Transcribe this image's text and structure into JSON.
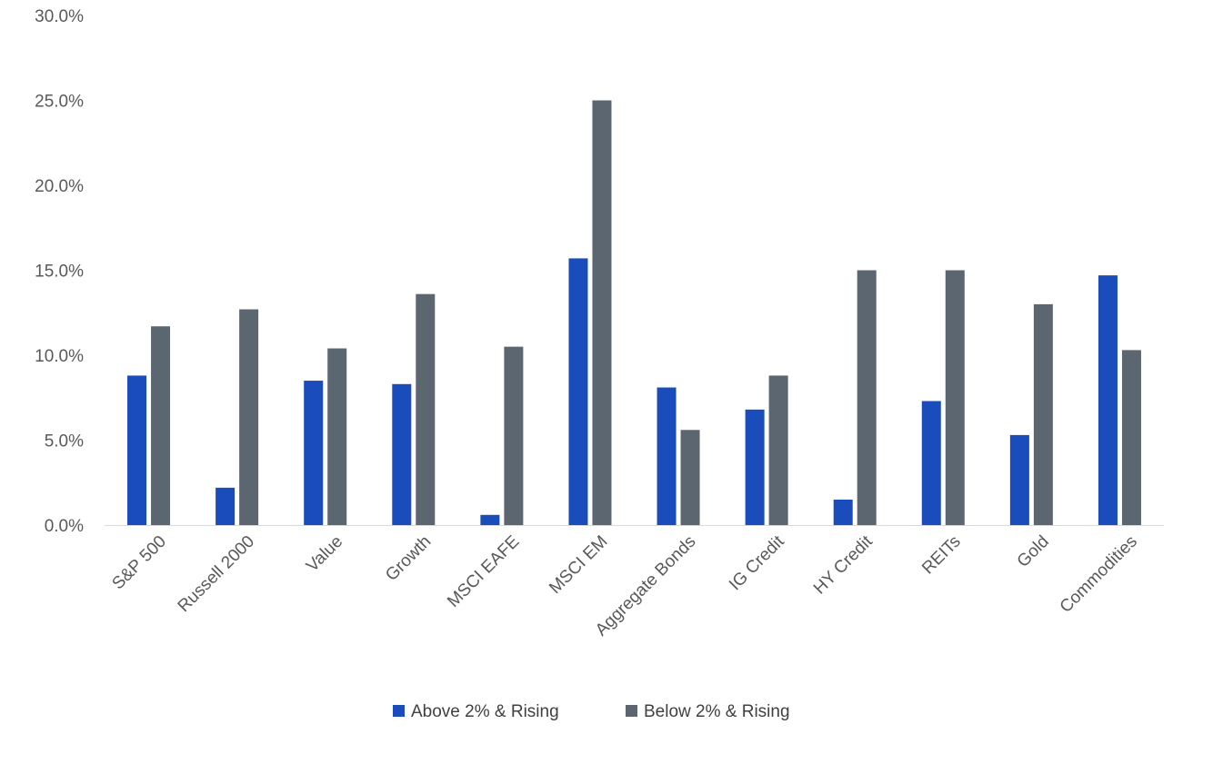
{
  "chart_data": {
    "type": "bar",
    "title": "",
    "xlabel": "",
    "ylabel": "",
    "categories": [
      "S&P 500",
      "Russell 2000",
      "Value",
      "Growth",
      "MSCI EAFE",
      "MSCI EM",
      "Aggregate Bonds",
      "IG Credit",
      "HY Credit",
      "REITs",
      "Gold",
      "Commodities"
    ],
    "series": [
      {
        "name": "Above 2% & Rising",
        "color": "#1a4dbb",
        "values": [
          8.8,
          2.2,
          8.5,
          8.3,
          0.6,
          15.7,
          8.1,
          6.8,
          1.5,
          7.3,
          5.3,
          14.7
        ]
      },
      {
        "name": "Below 2% & Rising",
        "color": "#5b6670",
        "values": [
          11.7,
          12.7,
          10.4,
          13.6,
          10.5,
          25.0,
          5.6,
          8.8,
          15.0,
          15.0,
          13.0,
          10.3
        ]
      }
    ],
    "ylim": [
      0,
      30
    ],
    "yticks": [
      0,
      5,
      10,
      15,
      20,
      25,
      30
    ],
    "ytick_labels": [
      "0.0%",
      "5.0%",
      "10.0%",
      "15.0%",
      "20.0%",
      "25.0%",
      "30.0%"
    ],
    "grid": false,
    "legend": "bottom-center"
  }
}
